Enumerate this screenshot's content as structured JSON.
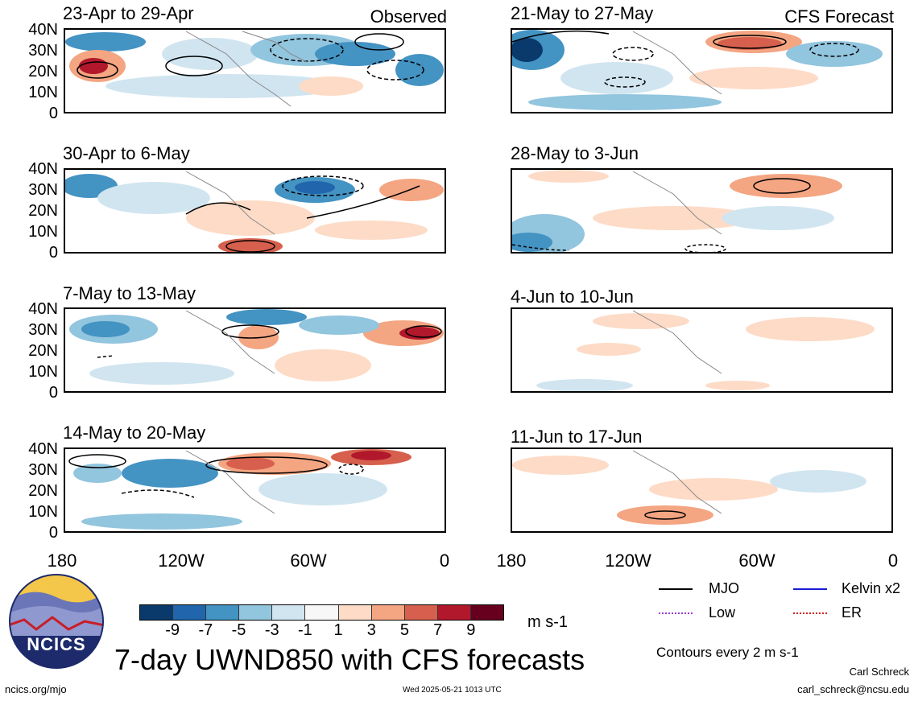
{
  "panels_left": [
    {
      "title": "23-Apr to 29-Apr",
      "tag": "Observed"
    },
    {
      "title": "30-Apr to 6-May",
      "tag": ""
    },
    {
      "title": "7-May to 13-May",
      "tag": ""
    },
    {
      "title": "14-May to 20-May",
      "tag": ""
    }
  ],
  "panels_right": [
    {
      "title": "21-May to 27-May",
      "tag": "CFS Forecast"
    },
    {
      "title": "28-May to 3-Jun",
      "tag": ""
    },
    {
      "title": "4-Jun to 10-Jun",
      "tag": ""
    },
    {
      "title": "11-Jun to 17-Jun",
      "tag": ""
    }
  ],
  "lat_labels": [
    "40N",
    "30N",
    "20N",
    "10N",
    "0"
  ],
  "lon_labels": [
    "180",
    "120W",
    "60W",
    "0"
  ],
  "colorbar": {
    "colors": [
      "#0a3a6b",
      "#2166ac",
      "#4393c3",
      "#92c5de",
      "#d1e5f0",
      "#f7f7f7",
      "#fddbc7",
      "#f4a582",
      "#d6604d",
      "#b2182b",
      "#67001f"
    ],
    "labels": [
      "-9",
      "-7",
      "-5",
      "-3",
      "-1",
      "1",
      "3",
      "5",
      "7",
      "9"
    ],
    "units": "m s-1"
  },
  "legend": {
    "mjo": {
      "label": "MJO",
      "color": "#000000"
    },
    "kelvin": {
      "label": "Kelvin x2",
      "color": "#1a1ad6"
    },
    "low": {
      "label": "Low",
      "color": "#9a3cd6"
    },
    "er": {
      "label": "ER",
      "color": "#d62020"
    },
    "contours_note": "Contours every 2 m s-1"
  },
  "footer": {
    "main_title": "7-day UWND850 with CFS forecasts",
    "logo_text": "NCICS",
    "url": "ncics.org/mjo",
    "timestamp": "Wed 2025-05-21 1013 UTC",
    "author": "Carl Schreck",
    "email": "carl_schreck@ncsu.edu"
  }
}
